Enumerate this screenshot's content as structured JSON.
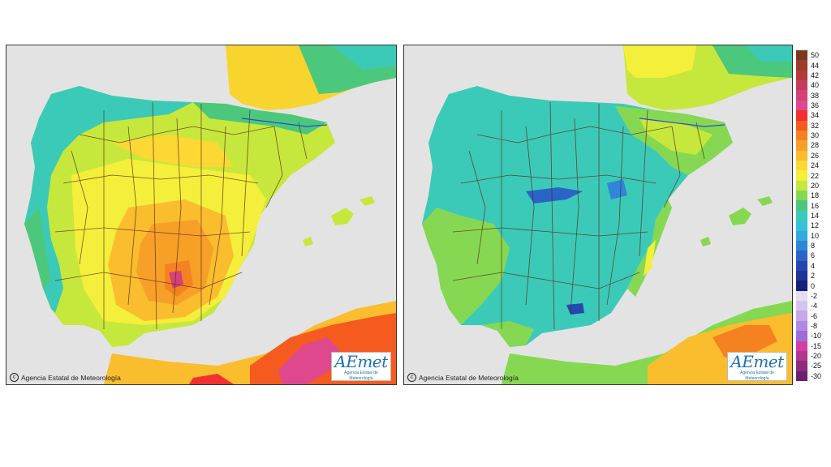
{
  "maps": [
    {
      "id": "left",
      "copyright": "Agencia Estatal de Meteorología",
      "logo_text": "AEmet",
      "logo_subtitle": "Agencia Estatal de Meteorología"
    },
    {
      "id": "right",
      "copyright": "Agencia Estatal de Meteorología",
      "logo_text": "AEmet",
      "logo_subtitle": "Agencia Estatal de Meteorología"
    }
  ],
  "legend": {
    "entries": [
      {
        "label": "50",
        "color": "#7a3a1a"
      },
      {
        "label": "44",
        "color": "#9c3b2a"
      },
      {
        "label": "42",
        "color": "#b23a3a"
      },
      {
        "label": "40",
        "color": "#c43c5a"
      },
      {
        "label": "38",
        "color": "#d44278"
      },
      {
        "label": "36",
        "color": "#e0488e"
      },
      {
        "label": "34",
        "color": "#f23030"
      },
      {
        "label": "32",
        "color": "#f55a1e"
      },
      {
        "label": "30",
        "color": "#f58220"
      },
      {
        "label": "28",
        "color": "#f7a028"
      },
      {
        "label": "26",
        "color": "#f9bd2e"
      },
      {
        "label": "24",
        "color": "#fbd834"
      },
      {
        "label": "22",
        "color": "#f4ef3a"
      },
      {
        "label": "20",
        "color": "#c6e83c"
      },
      {
        "label": "18",
        "color": "#86d852"
      },
      {
        "label": "16",
        "color": "#4cc87c"
      },
      {
        "label": "14",
        "color": "#3ccab8"
      },
      {
        "label": "12",
        "color": "#36c3d8"
      },
      {
        "label": "10",
        "color": "#34a8e0"
      },
      {
        "label": "8",
        "color": "#2f86d8"
      },
      {
        "label": "6",
        "color": "#2a64c6"
      },
      {
        "label": "4",
        "color": "#2548b0"
      },
      {
        "label": "2",
        "color": "#1f3296"
      },
      {
        "label": "0",
        "color": "#15207a"
      },
      {
        "label": "-2",
        "color": "#e6dcf4"
      },
      {
        "label": "-4",
        "color": "#d6c4ee"
      },
      {
        "label": "-6",
        "color": "#c4a8e8"
      },
      {
        "label": "-8",
        "color": "#b08ae2"
      },
      {
        "label": "-10",
        "color": "#9c6cda"
      },
      {
        "label": "-15",
        "color": "#d43ea0"
      },
      {
        "label": "-20",
        "color": "#b2358e"
      },
      {
        "label": "-25",
        "color": "#8e2c7e"
      },
      {
        "label": "-30",
        "color": "#6a2270"
      }
    ]
  }
}
